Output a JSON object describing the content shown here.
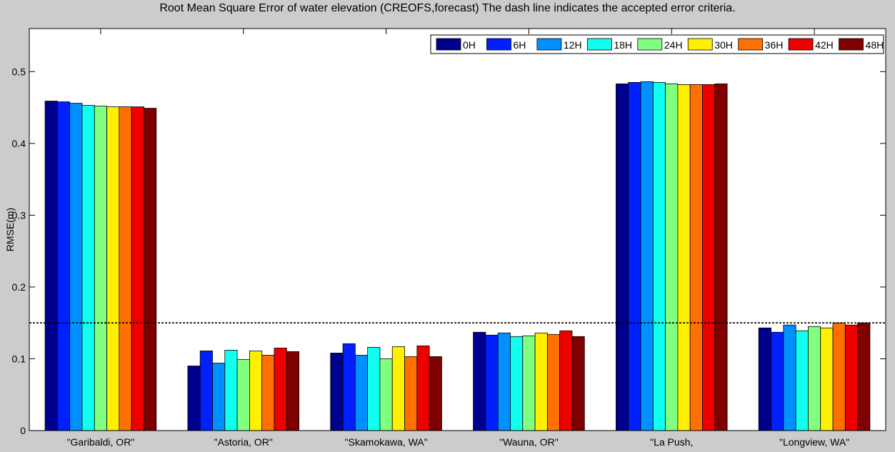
{
  "chart_data": {
    "type": "bar",
    "title": "Root Mean Square Error of water elevation  (CREOFS,forecast)   The dash line indicates the accepted error criteria.",
    "xlabel": "",
    "ylabel": "RMSE(m)",
    "ylim": [
      0,
      0.56
    ],
    "yticks": [
      0,
      0.1,
      0.2,
      0.3,
      0.4,
      0.5
    ],
    "ytick_labels": [
      "0",
      "0.1",
      "0.2",
      "0.3",
      "0.4",
      "0.5"
    ],
    "grid": false,
    "legend_position": "top-right",
    "criteria_line": 0.15,
    "categories": [
      "\"Garibaldi, OR\"",
      "\"Astoria, OR\"",
      "\"Skamokawa, WA\"",
      "\"Wauna, OR\"",
      "\"La Push,",
      "\"Longview, WA\""
    ],
    "series": [
      {
        "name": "0H",
        "color": "#00008f",
        "values": [
          0.459,
          0.09,
          0.108,
          0.137,
          0.483,
          0.143
        ]
      },
      {
        "name": "6H",
        "color": "#0020ff",
        "values": [
          0.458,
          0.111,
          0.121,
          0.133,
          0.485,
          0.137
        ]
      },
      {
        "name": "12H",
        "color": "#0090ff",
        "values": [
          0.456,
          0.094,
          0.105,
          0.136,
          0.486,
          0.147
        ]
      },
      {
        "name": "18H",
        "color": "#10ffef",
        "values": [
          0.453,
          0.112,
          0.116,
          0.131,
          0.485,
          0.139
        ]
      },
      {
        "name": "24H",
        "color": "#80ff80",
        "values": [
          0.452,
          0.099,
          0.1,
          0.132,
          0.483,
          0.145
        ]
      },
      {
        "name": "30H",
        "color": "#ffef00",
        "values": [
          0.451,
          0.111,
          0.117,
          0.136,
          0.482,
          0.143
        ]
      },
      {
        "name": "36H",
        "color": "#ff7000",
        "values": [
          0.451,
          0.105,
          0.103,
          0.134,
          0.482,
          0.15
        ]
      },
      {
        "name": "42H",
        "color": "#ef0000",
        "values": [
          0.451,
          0.115,
          0.118,
          0.139,
          0.482,
          0.147
        ]
      },
      {
        "name": "48H",
        "color": "#7f0000",
        "values": [
          0.449,
          0.11,
          0.103,
          0.131,
          0.483,
          0.15
        ]
      }
    ]
  }
}
